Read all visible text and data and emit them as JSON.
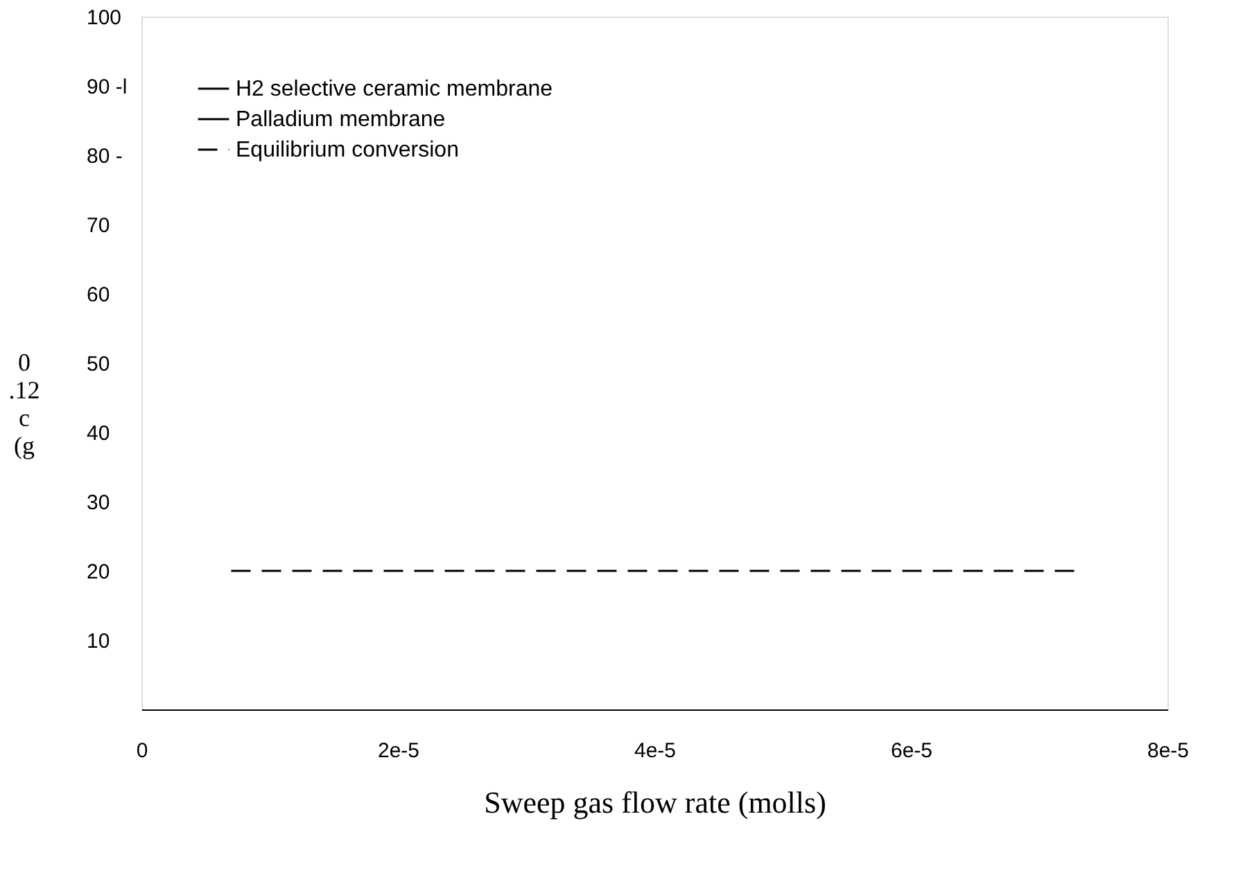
{
  "chart_data": {
    "type": "line",
    "xlabel": "Sweep gas flow rate (molls)",
    "ylabel": "0 .12 c (g",
    "xlim": [
      0,
      8e-05
    ],
    "xticks": [
      0,
      {
        "value": 2e-05,
        "label": "2e-5"
      },
      {
        "value": 4e-05,
        "label": "4e-5"
      },
      {
        "value": 6e-05,
        "label": "6e-5"
      },
      {
        "value": 8e-05,
        "label": "8e-5"
      }
    ],
    "ylim": [
      0,
      100
    ],
    "yticks": [
      10,
      20,
      30,
      40,
      50,
      60,
      70,
      {
        "value": 80,
        "label": "80 -"
      },
      {
        "value": 90,
        "label": "90 -l"
      },
      100
    ],
    "x": [
      7e-06,
      7.3e-05
    ],
    "series": [
      {
        "name": "H2 selective ceramic membrane",
        "color": "#000000",
        "values": [
          null,
          null
        ],
        "line_style": "solid"
      },
      {
        "name": "Palladium membrane",
        "color": "#000000",
        "values": [
          null,
          null
        ],
        "line_style": "solid"
      },
      {
        "name": "Equilibrium conversion",
        "color": "#000000",
        "values": [
          20,
          20
        ],
        "line_style": "dashed"
      }
    ],
    "legend": "top left",
    "grid": false
  }
}
